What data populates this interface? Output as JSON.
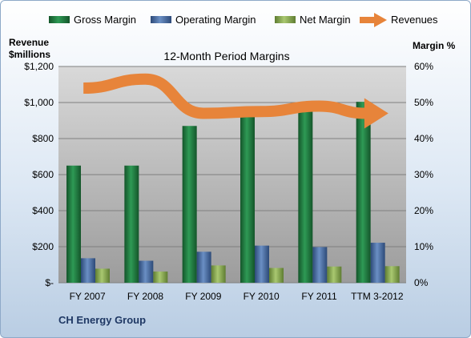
{
  "chart_data": {
    "type": "bar",
    "title": "12-Month Period Margins",
    "company": "CH Energy Group",
    "left_axis_title_line1": "Revenue",
    "left_axis_title_line2": "$millions",
    "right_axis_title": "Margin %",
    "categories": [
      "FY 2007",
      "FY 2008",
      "FY 2009",
      "FY 2010",
      "FY 2011",
      "TTM 3-2012"
    ],
    "left_ticks": [
      "$-",
      "$200",
      "$400",
      "$600",
      "$800",
      "$1,000",
      "$1,200"
    ],
    "right_ticks": [
      "0%",
      "10%",
      "20%",
      "30%",
      "40%",
      "50%",
      "60%"
    ],
    "ylim_left": [
      0,
      1200
    ],
    "ylim_right": [
      0,
      60
    ],
    "grid": true,
    "legend_position": "top",
    "series": [
      {
        "name": "Gross Margin",
        "axis": "right",
        "values": [
          32.5,
          32.5,
          43.5,
          47.5,
          48,
          50.2
        ],
        "color": "#217a3f"
      },
      {
        "name": "Operating Margin",
        "axis": "right",
        "values": [
          6.8,
          6.1,
          8.6,
          10.3,
          9.9,
          11.1
        ],
        "color": "#4a6fa5"
      },
      {
        "name": "Net Margin",
        "axis": "right",
        "values": [
          3.9,
          3.1,
          4.8,
          4.1,
          4.5,
          4.6
        ],
        "color": "#8aab4f"
      },
      {
        "name": "Revenues",
        "axis": "left",
        "type": "line",
        "values": [
          1080,
          1130,
          940,
          950,
          980,
          940
        ],
        "color": "#e7843a"
      }
    ]
  }
}
